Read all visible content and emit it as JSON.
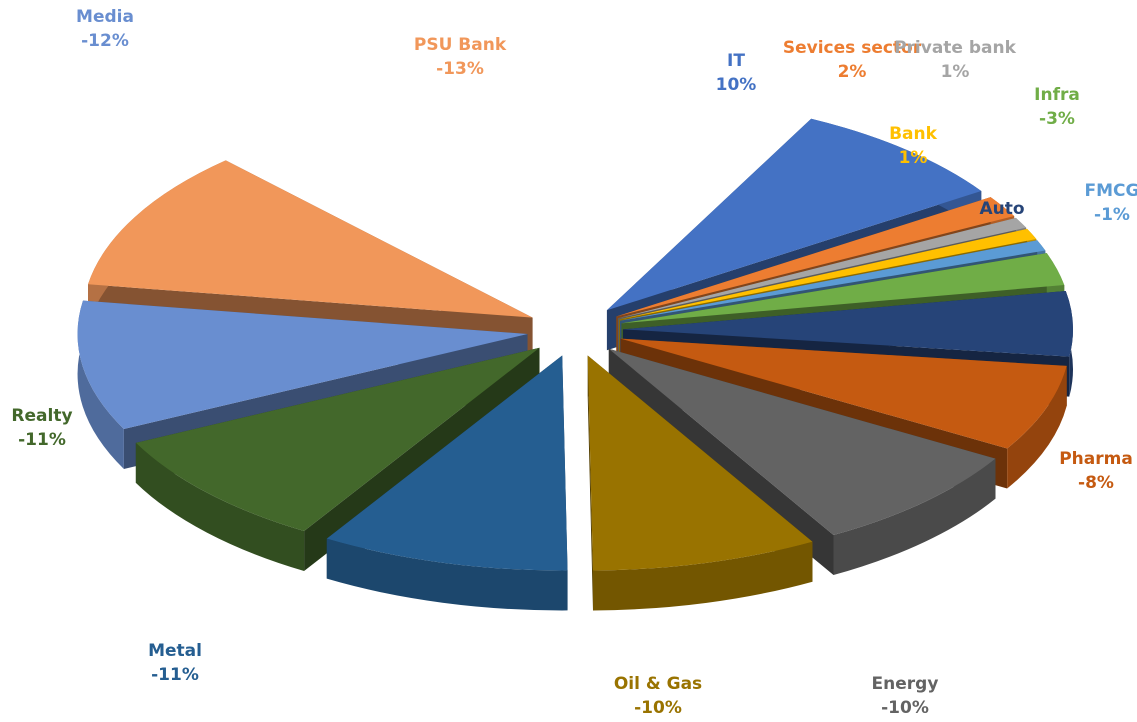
{
  "chart_data": {
    "type": "pie",
    "style": "3d-exploded",
    "title": "",
    "slices": [
      {
        "label": "IT",
        "value_label": "10%",
        "value": 10,
        "color": "#4472C4"
      },
      {
        "label": "Sevices sector",
        "value_label": "2%",
        "value": 2,
        "color": "#ED7D31"
      },
      {
        "label": "Private bank",
        "value_label": "1%",
        "value": 1,
        "color": "#A5A5A5"
      },
      {
        "label": "Bank",
        "value_label": "1%",
        "value": 1,
        "color": "#FFC000"
      },
      {
        "label": "FMCG",
        "value_label": "-1%",
        "value": -1,
        "color": "#5B9BD5"
      },
      {
        "label": "Infra",
        "value_label": "-3%",
        "value": -3,
        "color": "#70AD47"
      },
      {
        "label": "Auto",
        "value_label": "",
        "value": null,
        "color": "#264478"
      },
      {
        "label": "Pharma",
        "value_label": "-8%",
        "value": -8,
        "color": "#C55A11"
      },
      {
        "label": "Energy",
        "value_label": "-10%",
        "value": -10,
        "color": "#636363"
      },
      {
        "label": "Oil & Gas",
        "value_label": "-10%",
        "value": -10,
        "color": "#997300"
      },
      {
        "label": "Metal",
        "value_label": "-11%",
        "value": -11,
        "color": "#255E91"
      },
      {
        "label": "Realty",
        "value_label": "-11%",
        "value": -11,
        "color": "#43682B"
      },
      {
        "label": "Media",
        "value_label": "-12%",
        "value": -12,
        "color": "#698ED0"
      },
      {
        "label": "PSU Bank",
        "value_label": "-13%",
        "value": -13,
        "color": "#F1975A"
      }
    ]
  }
}
